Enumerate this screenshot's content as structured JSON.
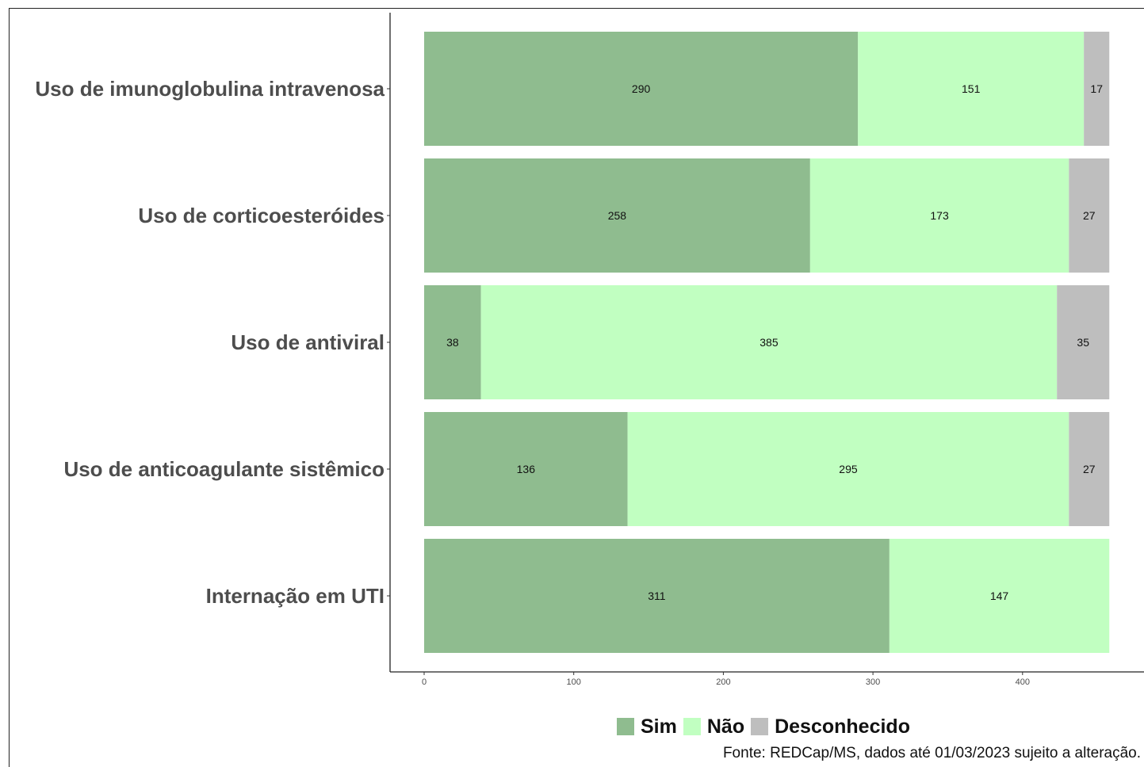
{
  "chart_data": {
    "type": "bar",
    "orientation": "horizontal",
    "stacked": true,
    "categories": [
      "Uso de imunoglobulina intravenosa",
      "Uso de corticoesteróides",
      "Uso de antiviral",
      "Uso de anticoagulante sistêmico",
      "Internação em UTI"
    ],
    "series": [
      {
        "name": "Sim",
        "color": "#8fbc8f",
        "values": [
          290,
          258,
          38,
          136,
          311
        ]
      },
      {
        "name": "Não",
        "color": "#c1ffc1",
        "values": [
          151,
          173,
          385,
          295,
          147
        ]
      },
      {
        "name": "Desconhecido",
        "color": "#bebebe",
        "values": [
          17,
          27,
          35,
          27,
          0
        ]
      }
    ],
    "xlim": [
      0,
      458
    ],
    "xticks": [
      0,
      100,
      200,
      300,
      400
    ],
    "xlabel": "",
    "ylabel": "",
    "title": "",
    "grid": false,
    "legend_position": "bottom-right"
  },
  "source_note": "Fonte: REDCap/MS, dados até 01/03/2023 sujeito a alteração."
}
